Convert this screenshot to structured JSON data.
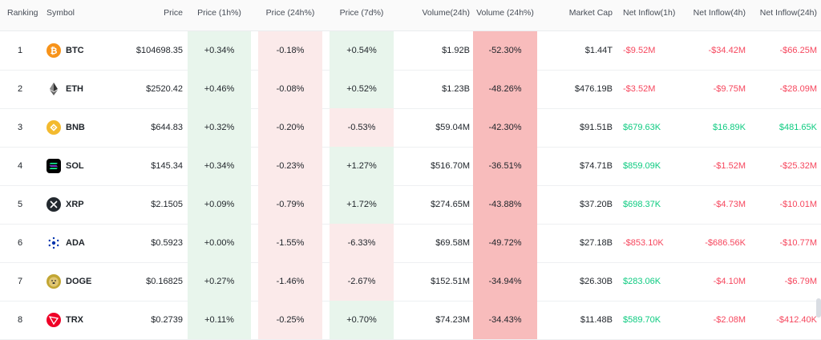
{
  "columns": {
    "ranking": "Ranking",
    "symbol": "Symbol",
    "price": "Price",
    "price_1h": "Price (1h%)",
    "price_24h": "Price (24h%)",
    "price_7d": "Price (7d%)",
    "volume_24h": "Volume(24h)",
    "volume_24h_pct": "Volume (24h%)",
    "market_cap": "Market Cap",
    "net_inflow_1h": "Net Inflow(1h)",
    "net_inflow_4h": "Net Inflow(4h)",
    "net_inflow_24h": "Net Inflow(24h)"
  },
  "rows": [
    {
      "rank": "1",
      "symbol": "BTC",
      "icon": "bitcoin-icon",
      "price": "$104698.35",
      "p1h": "+0.34%",
      "p24h": "-0.18%",
      "p7d": "+0.54%",
      "vol": "$1.92B",
      "volpct": "-52.30%",
      "mcap": "$1.44T",
      "in1h": "-$9.52M",
      "in4h": "-$34.42M",
      "in24h": "-$66.25M"
    },
    {
      "rank": "2",
      "symbol": "ETH",
      "icon": "ethereum-icon",
      "price": "$2520.42",
      "p1h": "+0.46%",
      "p24h": "-0.08%",
      "p7d": "+0.52%",
      "vol": "$1.23B",
      "volpct": "-48.26%",
      "mcap": "$476.19B",
      "in1h": "-$3.52M",
      "in4h": "-$9.75M",
      "in24h": "-$28.09M"
    },
    {
      "rank": "3",
      "symbol": "BNB",
      "icon": "bnb-icon",
      "price": "$644.83",
      "p1h": "+0.32%",
      "p24h": "-0.20%",
      "p7d": "-0.53%",
      "vol": "$59.04M",
      "volpct": "-42.30%",
      "mcap": "$91.51B",
      "in1h": "$679.63K",
      "in4h": "$16.89K",
      "in24h": "$481.65K"
    },
    {
      "rank": "4",
      "symbol": "SOL",
      "icon": "solana-icon",
      "price": "$145.34",
      "p1h": "+0.34%",
      "p24h": "-0.23%",
      "p7d": "+1.27%",
      "vol": "$516.70M",
      "volpct": "-36.51%",
      "mcap": "$74.71B",
      "in1h": "$859.09K",
      "in4h": "-$1.52M",
      "in24h": "-$25.32M"
    },
    {
      "rank": "5",
      "symbol": "XRP",
      "icon": "xrp-icon",
      "price": "$2.1505",
      "p1h": "+0.09%",
      "p24h": "-0.79%",
      "p7d": "+1.72%",
      "vol": "$274.65M",
      "volpct": "-43.88%",
      "mcap": "$37.20B",
      "in1h": "$698.37K",
      "in4h": "-$4.73M",
      "in24h": "-$10.01M"
    },
    {
      "rank": "6",
      "symbol": "ADA",
      "icon": "cardano-icon",
      "price": "$0.5923",
      "p1h": "+0.00%",
      "p24h": "-1.55%",
      "p7d": "-6.33%",
      "vol": "$69.58M",
      "volpct": "-49.72%",
      "mcap": "$27.18B",
      "in1h": "-$853.10K",
      "in4h": "-$686.56K",
      "in24h": "-$10.77M"
    },
    {
      "rank": "7",
      "symbol": "DOGE",
      "icon": "dogecoin-icon",
      "price": "$0.16825",
      "p1h": "+0.27%",
      "p24h": "-1.46%",
      "p7d": "-2.67%",
      "vol": "$152.51M",
      "volpct": "-34.94%",
      "mcap": "$26.30B",
      "in1h": "$283.06K",
      "in4h": "-$4.10M",
      "in24h": "-$6.79M"
    },
    {
      "rank": "8",
      "symbol": "TRX",
      "icon": "tron-icon",
      "price": "$0.2739",
      "p1h": "+0.11%",
      "p24h": "-0.25%",
      "p7d": "+0.70%",
      "vol": "$74.23M",
      "volpct": "-34.43%",
      "mcap": "$11.48B",
      "in1h": "$589.70K",
      "in4h": "-$2.08M",
      "in24h": "-$412.40K"
    }
  ],
  "colors": {
    "positive_bg": "#e8f5ec",
    "negative_bg": "#fbeaea",
    "volume_bg": "#f8bcbc",
    "green_text": "#0ecb81",
    "red_text": "#f6465d"
  }
}
